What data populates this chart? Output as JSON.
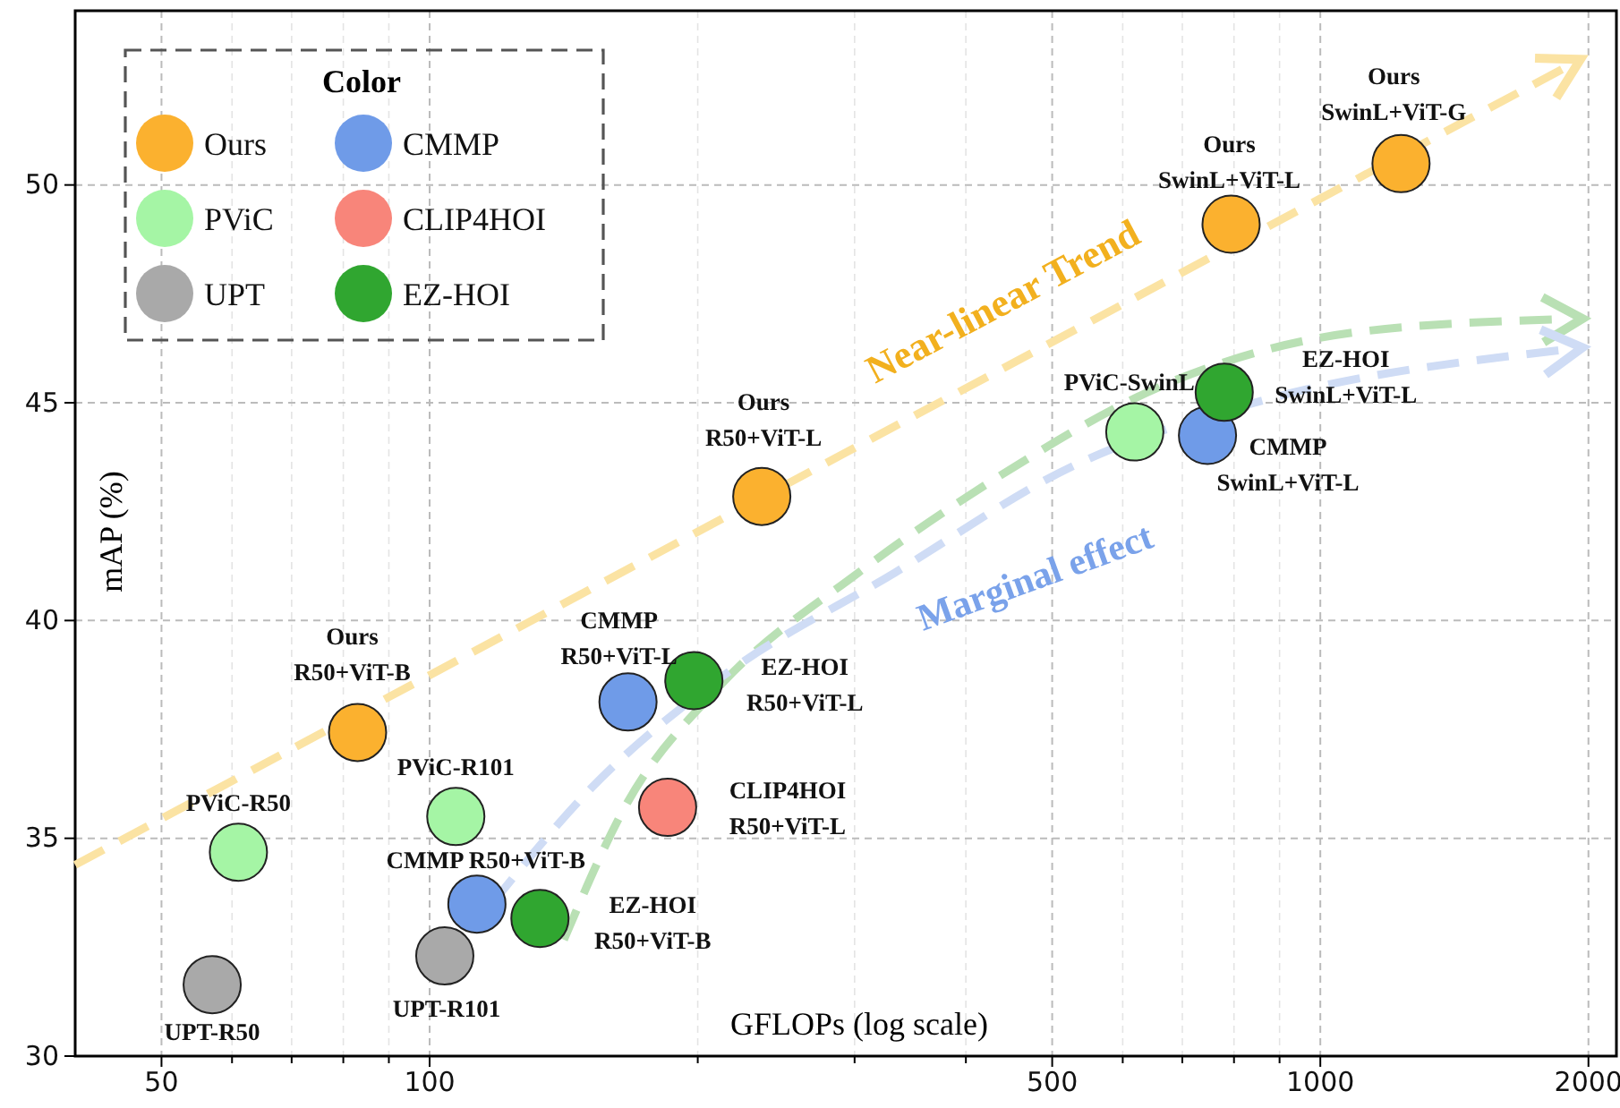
{
  "chart_data": {
    "type": "scatter",
    "xlabel": "GFLOPs (log scale)",
    "ylabel": "mAP (%)",
    "legend_title": "Color",
    "legend": "top left",
    "grid": true,
    "log": "x",
    "marker": "circle",
    "xlim": [
      40,
      2150
    ],
    "ylim": [
      30,
      54
    ],
    "xticks": [
      50,
      {
        "value": 60,
        "label": null
      },
      {
        "value": 70,
        "label": null
      },
      {
        "value": 80,
        "label": null
      },
      {
        "value": 90,
        "label": null
      },
      100,
      {
        "value": 200,
        "label": null
      },
      {
        "value": 300,
        "label": null
      },
      {
        "value": 400,
        "label": null
      },
      500,
      {
        "value": 600,
        "label": null
      },
      {
        "value": 700,
        "label": null
      },
      {
        "value": 800,
        "label": null
      },
      {
        "value": 900,
        "label": null
      },
      1000,
      2000
    ],
    "yticks": [
      30,
      35,
      40,
      45,
      50
    ],
    "series": [
      {
        "type": "line",
        "line_style": "dashed",
        "marker": "none",
        "color": "#fbe3a3",
        "x": [
          40,
          1885
        ],
        "values": [
          34.39,
          52.7
        ]
      },
      {
        "type": "line",
        "line_style": "dashed",
        "marker": "none",
        "color": "#b9e0b4",
        "x": [
          141.5,
          166,
          210,
          303,
          439,
          666,
          1107,
          1885
        ],
        "values": [
          32.67,
          35.75,
          38.42,
          41.1,
          43.35,
          45.4,
          46.63,
          46.92
        ]
      },
      {
        "type": "line",
        "line_style": "dashed",
        "marker": "none",
        "color": "#cfdcf5",
        "x": [
          117.5,
          152,
          210,
          333,
          528,
          840,
          1885
        ],
        "values": [
          33.5,
          36.16,
          38.62,
          41.1,
          43.55,
          44.99,
          46.22
        ]
      },
      {
        "name": "Ours",
        "color": "#fbb12f",
        "x": [
          83,
          236,
          794,
          1232
        ],
        "values": [
          37.43,
          42.85,
          49.1,
          50.49
        ]
      },
      {
        "name": "PViC",
        "color": "#a5f5a5",
        "x": [
          61,
          107,
          619
        ],
        "values": [
          34.68,
          35.5,
          44.33
        ]
      },
      {
        "name": "UPT",
        "color": "#a9a9a9",
        "x": [
          57,
          104
        ],
        "values": [
          31.64,
          32.3
        ]
      },
      {
        "name": "CMMP",
        "color": "#6f9be8",
        "x": [
          113,
          167,
          747
        ],
        "values": [
          33.49,
          38.13,
          44.25
        ]
      },
      {
        "name": "CLIP4HOI",
        "color": "#f8857a",
        "x": [
          185
        ],
        "values": [
          35.71
        ]
      },
      {
        "name": "EZ-HOI",
        "color": "#30a630",
        "x": [
          133,
          198,
          780
        ],
        "values": [
          33.16,
          38.62,
          45.24
        ]
      }
    ],
    "annotations": [
      {
        "text": "Ours\nR50+ViT-B",
        "x": 83,
        "y": 37.43
      },
      {
        "text": "Ours\nR50+ViT-L",
        "x": 236,
        "y": 42.85
      },
      {
        "text": "Ours\nSwinL+ViT-L",
        "x": 794,
        "y": 49.1
      },
      {
        "text": "Ours\nSwinL+ViT-G",
        "x": 1232,
        "y": 50.49
      },
      {
        "text": "PViC-R50",
        "x": 61,
        "y": 34.68
      },
      {
        "text": "PViC-R101",
        "x": 107,
        "y": 35.5
      },
      {
        "text": "PViC-SwinL",
        "x": 619,
        "y": 44.33
      },
      {
        "text": "UPT-R50",
        "x": 57,
        "y": 31.64
      },
      {
        "text": "UPT-R101",
        "x": 104,
        "y": 32.3
      },
      {
        "text": "CMMP R50+ViT-B",
        "x": 113,
        "y": 33.49
      },
      {
        "text": "CMMP\nR50+ViT-L",
        "x": 167,
        "y": 38.13
      },
      {
        "text": "CMMP\nSwinL+ViT-L",
        "x": 747,
        "y": 44.25
      },
      {
        "text": "CLIP4HOI\nR50+ViT-L",
        "x": 185,
        "y": 35.71
      },
      {
        "text": "EZ-HOI\nR50+ViT-B",
        "x": 133,
        "y": 33.16
      },
      {
        "text": "EZ-HOI\nR50+ViT-L",
        "x": 198,
        "y": 38.62
      },
      {
        "text": "EZ-HOI\nSwinL+ViT-L",
        "x": 780,
        "y": 45.24
      },
      "Near-linear Trend",
      "Marginal effect"
    ]
  }
}
